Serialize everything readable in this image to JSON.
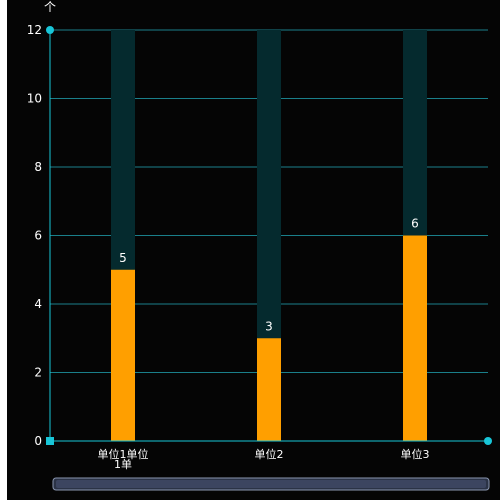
{
  "chart_data": {
    "type": "bar",
    "y_unit": "个",
    "categories": [
      "单位1单位1单",
      "单位2",
      "单位3"
    ],
    "category_lines": [
      [
        "单位1单位",
        "1单"
      ],
      [
        "单位2"
      ],
      [
        "单位3"
      ]
    ],
    "series": [
      {
        "values": [
          5,
          3,
          6
        ],
        "color": "#ff9f00",
        "background_color": "#052a2e",
        "labels_shown": true
      }
    ],
    "ylim": [
      0,
      12
    ],
    "yticks": [
      0,
      2,
      4,
      6,
      8,
      10,
      12
    ],
    "grid": true,
    "axis_color": "#18c6d8",
    "grid_color": "#1a7f8a",
    "legend": "none",
    "data_zoom": true
  }
}
